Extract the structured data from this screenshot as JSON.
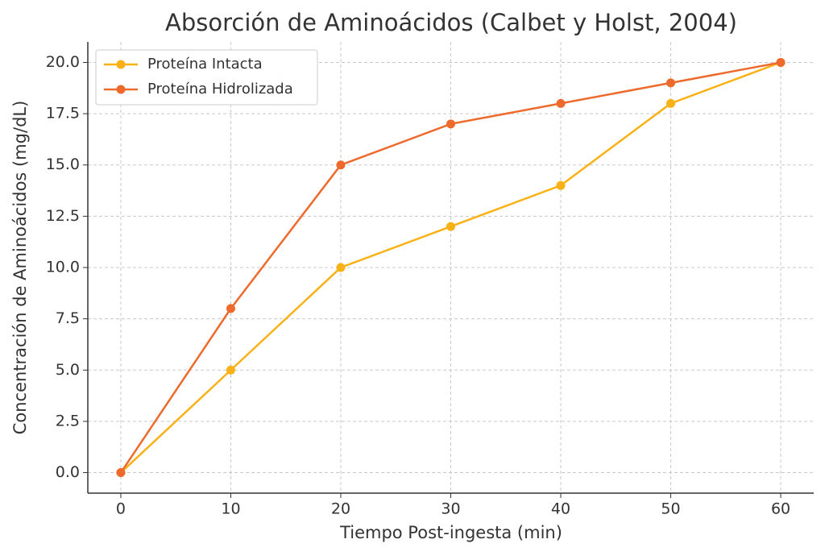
{
  "chart_data": {
    "type": "line",
    "title": "Absorción de Aminoácidos (Calbet y Holst, 2004)",
    "x_label": "Tiempo Post-ingesta (min)",
    "y_label": "Concentración de Aminoácidos (mg/dL)",
    "x": [
      0,
      10,
      20,
      30,
      40,
      50,
      60
    ],
    "series": [
      {
        "name": "Proteína Intacta",
        "color": "#f9b115",
        "values": [
          0,
          5,
          10,
          12,
          14,
          18,
          20
        ]
      },
      {
        "name": "Proteína Hidrolizada",
        "color": "#ee6a2c",
        "values": [
          0,
          8,
          15,
          17,
          18,
          19,
          20
        ]
      }
    ],
    "xlim": [
      -3,
      63
    ],
    "xticks": [
      0,
      10,
      20,
      30,
      40,
      50,
      60
    ],
    "ylim": [
      -1,
      21
    ],
    "yticks": [
      {
        "value": 0,
        "label": "0.0"
      },
      2.5,
      {
        "value": 5,
        "label": "5.0"
      },
      7.5,
      {
        "value": 10,
        "label": "10.0"
      },
      12.5,
      {
        "value": 15,
        "label": "15.0"
      },
      17.5,
      {
        "value": 20,
        "label": "20.0"
      }
    ],
    "grid": true,
    "legend": "upper left"
  }
}
